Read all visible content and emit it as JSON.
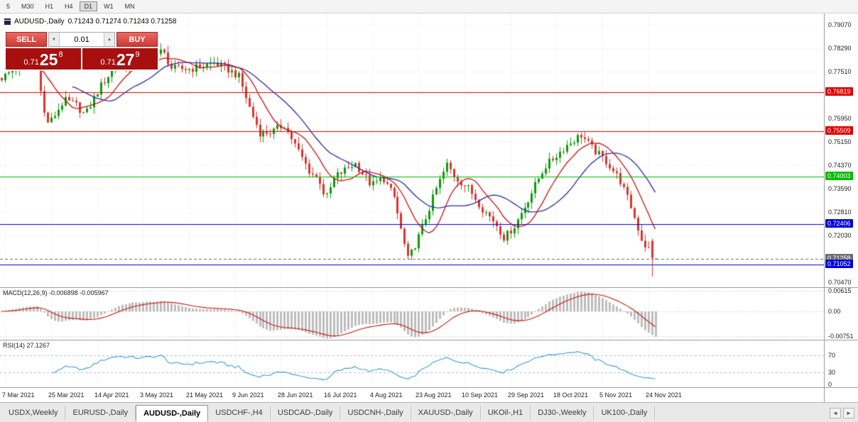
{
  "toolbar": {
    "timeframes": [
      "5",
      "M30",
      "H1",
      "H4",
      "D1",
      "W1",
      "MN"
    ],
    "active": "D1"
  },
  "chart_header": {
    "symbol": "AUDUSD-,Daily",
    "ohlc": "0.71243 0.71274 0.71243 0.71258"
  },
  "trade_panel": {
    "sell_label": "SELL",
    "buy_label": "BUY",
    "volume": "0.01",
    "sell_price": {
      "prefix": "0.71",
      "big": "25",
      "sup": "8"
    },
    "buy_price": {
      "prefix": "0.71",
      "big": "27",
      "sup": "9"
    }
  },
  "icons": {
    "volume_down": "▼",
    "volume_up": "▲",
    "tab_scroll_left": "◄",
    "tab_scroll_right": "►"
  },
  "date_axis": [
    "7 Mar 2021",
    "25 Mar 2021",
    "14 Apr 2021",
    "3 May 2021",
    "21 May 2021",
    "9 Jun 2021",
    "28 Jun 2021",
    "16 Jul 2021",
    "4 Aug 2021",
    "23 Aug 2021",
    "10 Sep 2021",
    "29 Sep 2021",
    "18 Oct 2021",
    "5 Nov 2021",
    "24 Nov 2021"
  ],
  "tabs": {
    "items": [
      "USDX,Weekly",
      "EURUSD-,Daily",
      "AUDUSD-,Daily",
      "USDCHF-,H4",
      "USDCAD-,Daily",
      "USDCNH-,Daily",
      "XAUUSD-,Daily",
      "UKOil-,H1",
      "DJ30-,Weekly",
      "UK100-,Daily"
    ],
    "active_index": 2
  },
  "colors": {
    "bull": "#0a9e0a",
    "bear": "#dc342c",
    "ma_fast": "#cc1111",
    "ma_slow": "#2929a3",
    "macd_hist": "#bdbdbd",
    "macd_signal": "#cc1111",
    "rsi_line": "#3d9bd4",
    "rsi_level": "#b9b9dd",
    "grid": "#e9e9e9",
    "bid_gray": "#6e6e6e"
  },
  "chart_data": {
    "type": "candlestick",
    "symbol": "AUDUSD-",
    "timeframe": "Daily",
    "ohlc_display": {
      "open": "0.71243",
      "high": "0.71274",
      "low": "0.71243",
      "close": "0.71258"
    },
    "y_axis": {
      "range": [
        0.703,
        0.7945
      ],
      "ticks": [
        "0.79070",
        "0.78290",
        "0.77510",
        "0.75950",
        "0.75150",
        "0.74370",
        "0.73590",
        "0.72810",
        "0.72030",
        "0.70470"
      ]
    },
    "x_tick_labels": [
      "7 Mar 2021",
      "25 Mar 2021",
      "14 Apr 2021",
      "3 May 2021",
      "21 May 2021",
      "9 Jun 2021",
      "28 Jun 2021",
      "16 Jul 2021",
      "4 Aug 2021",
      "23 Aug 2021",
      "10 Sep 2021",
      "29 Sep 2021",
      "18 Oct 2021",
      "5 Nov 2021",
      "24 Nov 2021"
    ],
    "h_lines": [
      {
        "label": "0.76819",
        "price": 0.76819,
        "color": "#e00000"
      },
      {
        "label": "0.75509",
        "price": 0.75509,
        "color": "#e00000"
      },
      {
        "label": "0.74003",
        "price": 0.74003,
        "color": "#00bb00"
      },
      {
        "label": "0.72406",
        "price": 0.72406,
        "color": "#0000d9"
      },
      {
        "label": "0.71052",
        "price": 0.71052,
        "color": "#0000d9"
      }
    ],
    "bid": {
      "label": "0.71258",
      "price": 0.71258,
      "color": "#6e6e6e"
    },
    "candle_count": 186,
    "x_tick_interval_candles": 13,
    "last_candle": {
      "o": 0.71243,
      "h": 0.71274,
      "l": 0.71243,
      "c": 0.71258
    },
    "penultimate_candle": {
      "o": 0.7185,
      "h": 0.7192,
      "l": 0.7066,
      "c": 0.7128
    },
    "price_path": [
      [
        0.0,
        0.773
      ],
      [
        0.03,
        0.7775
      ],
      [
        0.054,
        0.778
      ],
      [
        0.063,
        0.762
      ],
      [
        0.072,
        0.7575
      ],
      [
        0.095,
        0.7655
      ],
      [
        0.113,
        0.764
      ],
      [
        0.127,
        0.7605
      ],
      [
        0.15,
        0.77
      ],
      [
        0.173,
        0.777
      ],
      [
        0.215,
        0.778
      ],
      [
        0.246,
        0.782
      ],
      [
        0.26,
        0.776
      ],
      [
        0.29,
        0.776
      ],
      [
        0.324,
        0.778
      ],
      [
        0.348,
        0.7755
      ],
      [
        0.362,
        0.7735
      ],
      [
        0.38,
        0.762
      ],
      [
        0.395,
        0.7545
      ],
      [
        0.415,
        0.755
      ],
      [
        0.432,
        0.7575
      ],
      [
        0.45,
        0.75
      ],
      [
        0.47,
        0.742
      ],
      [
        0.488,
        0.738
      ],
      [
        0.495,
        0.732
      ],
      [
        0.51,
        0.74
      ],
      [
        0.54,
        0.7445
      ],
      [
        0.565,
        0.737
      ],
      [
        0.583,
        0.7395
      ],
      [
        0.6,
        0.733
      ],
      [
        0.612,
        0.721
      ],
      [
        0.622,
        0.712
      ],
      [
        0.64,
        0.721
      ],
      [
        0.665,
        0.736
      ],
      [
        0.681,
        0.744
      ],
      [
        0.695,
        0.7395
      ],
      [
        0.714,
        0.736
      ],
      [
        0.736,
        0.729
      ],
      [
        0.755,
        0.7245
      ],
      [
        0.768,
        0.7195
      ],
      [
        0.784,
        0.7235
      ],
      [
        0.8,
        0.73
      ],
      [
        0.83,
        0.743
      ],
      [
        0.862,
        0.75
      ],
      [
        0.886,
        0.754
      ],
      [
        0.905,
        0.749
      ],
      [
        0.925,
        0.745
      ],
      [
        0.945,
        0.739
      ],
      [
        0.962,
        0.73
      ],
      [
        0.98,
        0.718
      ],
      [
        1.0,
        0.7126
      ]
    ],
    "ma_fast_period": 10,
    "ma_slow_period": 21,
    "macd": {
      "label": "MACD(12,26,9) -0.006898 -0.005967",
      "params": [
        12,
        26,
        9
      ],
      "ticks": [
        "0.00615",
        "0.00",
        "-0.00751"
      ],
      "range": [
        -0.0085,
        0.007
      ]
    },
    "rsi": {
      "label": "RSI(14) 27.1267",
      "period": 14,
      "value": "27.1267",
      "ticks": [
        "70",
        "30",
        "0"
      ],
      "levels": [
        70,
        30
      ]
    }
  }
}
